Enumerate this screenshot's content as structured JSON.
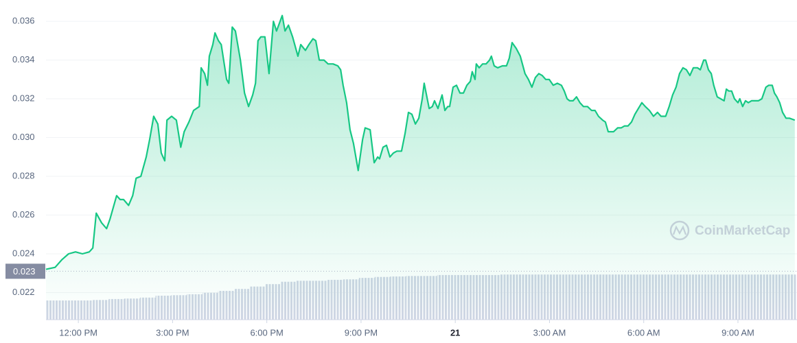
{
  "chart_data": {
    "type": "area",
    "color": "#16c784",
    "watermark": "CoinMarketCap",
    "xlim": [
      -1.03,
      22.88
    ],
    "xticks": [
      {
        "value": 0,
        "label": "12:00 PM"
      },
      {
        "value": 3,
        "label": "3:00 PM"
      },
      {
        "value": 6,
        "label": "6:00 PM"
      },
      {
        "value": 9,
        "label": "9:00 PM"
      },
      {
        "value": 12,
        "label": "21"
      },
      {
        "value": 15,
        "label": "3:00 AM"
      },
      {
        "value": 18,
        "label": "6:00 AM"
      },
      {
        "value": 21,
        "label": "9:00 AM"
      }
    ],
    "ylim": [
      0.0206,
      0.0371
    ],
    "yticks": [
      0.022,
      0.024,
      0.026,
      0.028,
      {
        "value": 0.03,
        "label": "0.030"
      },
      0.032,
      0.034,
      0.036
    ],
    "grid": true,
    "reference_line": {
      "value": 0.0231,
      "label": "0.023"
    },
    "x": [
      -1.03,
      -0.74,
      -0.52,
      -0.31,
      -0.09,
      0.13,
      0.35,
      0.46,
      0.57,
      0.74,
      0.9,
      1.01,
      1.22,
      1.33,
      1.44,
      1.6,
      1.73,
      1.84,
      1.99,
      2.16,
      2.27,
      2.4,
      2.53,
      2.64,
      2.75,
      2.82,
      2.97,
      3.12,
      3.26,
      3.37,
      3.52,
      3.67,
      3.85,
      3.91,
      4.02,
      4.11,
      4.17,
      4.28,
      4.35,
      4.46,
      4.55,
      4.72,
      4.79,
      4.9,
      5.0,
      5.16,
      5.29,
      5.42,
      5.55,
      5.64,
      5.72,
      5.81,
      5.94,
      6.07,
      6.21,
      6.31,
      6.4,
      6.49,
      6.58,
      6.69,
      6.82,
      6.99,
      7.08,
      7.23,
      7.34,
      7.47,
      7.56,
      7.67,
      7.82,
      7.95,
      8.11,
      8.26,
      8.35,
      8.43,
      8.54,
      8.65,
      8.76,
      8.91,
      9.05,
      9.13,
      9.29,
      9.42,
      9.53,
      9.59,
      9.7,
      9.81,
      9.92,
      10.03,
      10.14,
      10.29,
      10.4,
      10.51,
      10.62,
      10.73,
      10.84,
      10.95,
      11.01,
      11.17,
      11.27,
      11.34,
      11.45,
      11.58,
      11.67,
      11.76,
      11.82,
      11.93,
      12.04,
      12.15,
      12.26,
      12.37,
      12.48,
      12.54,
      12.63,
      12.67,
      12.76,
      12.87,
      12.98,
      13.09,
      13.15,
      13.24,
      13.35,
      13.5,
      13.63,
      13.72,
      13.81,
      13.94,
      14.07,
      14.22,
      14.33,
      14.44,
      14.55,
      14.66,
      14.77,
      14.88,
      14.99,
      15.12,
      15.25,
      15.38,
      15.47,
      15.56,
      15.64,
      15.75,
      15.86,
      15.97,
      16.08,
      16.21,
      16.34,
      16.45,
      16.56,
      16.69,
      16.78,
      16.87,
      17.04,
      17.17,
      17.28,
      17.39,
      17.5,
      17.61,
      17.72,
      17.83,
      17.94,
      18.05,
      18.18,
      18.31,
      18.44,
      18.55,
      18.7,
      18.81,
      18.92,
      19.03,
      19.14,
      19.25,
      19.36,
      19.47,
      19.58,
      19.71,
      19.8,
      19.91,
      19.97,
      20.06,
      20.15,
      20.23,
      20.34,
      20.45,
      20.56,
      20.63,
      20.71,
      20.8,
      20.89,
      21.0,
      21.06,
      21.15,
      21.24,
      21.33,
      21.43,
      21.54,
      21.65,
      21.76,
      21.89,
      21.98,
      22.09,
      22.16,
      22.24,
      22.33,
      22.42,
      22.53,
      22.64,
      22.81
    ],
    "values": [
      0.0232,
      0.0233,
      0.0237,
      0.024,
      0.0241,
      0.024,
      0.0241,
      0.0243,
      0.0261,
      0.0256,
      0.0253,
      0.0258,
      0.027,
      0.0268,
      0.0268,
      0.0265,
      0.027,
      0.0279,
      0.028,
      0.029,
      0.0299,
      0.0311,
      0.0307,
      0.0292,
      0.0288,
      0.0309,
      0.0311,
      0.0309,
      0.0295,
      0.0303,
      0.0308,
      0.0314,
      0.0316,
      0.0336,
      0.0333,
      0.0327,
      0.0342,
      0.0348,
      0.0354,
      0.035,
      0.0348,
      0.033,
      0.0328,
      0.0357,
      0.0355,
      0.034,
      0.0323,
      0.0316,
      0.0322,
      0.0328,
      0.035,
      0.0352,
      0.0352,
      0.0333,
      0.036,
      0.0355,
      0.0359,
      0.0363,
      0.0355,
      0.0358,
      0.0352,
      0.0342,
      0.0348,
      0.0345,
      0.0348,
      0.0351,
      0.035,
      0.034,
      0.034,
      0.0338,
      0.0338,
      0.0337,
      0.0335,
      0.0327,
      0.0318,
      0.0304,
      0.0297,
      0.0283,
      0.0299,
      0.0305,
      0.0304,
      0.0287,
      0.029,
      0.0289,
      0.0295,
      0.0296,
      0.029,
      0.0292,
      0.0293,
      0.0293,
      0.0302,
      0.0313,
      0.0312,
      0.0307,
      0.031,
      0.032,
      0.0328,
      0.0315,
      0.0316,
      0.0319,
      0.0315,
      0.0322,
      0.0314,
      0.0316,
      0.0316,
      0.0326,
      0.0327,
      0.0323,
      0.0323,
      0.0327,
      0.0329,
      0.0334,
      0.033,
      0.0338,
      0.0336,
      0.0338,
      0.0338,
      0.034,
      0.0342,
      0.0337,
      0.0336,
      0.0337,
      0.0337,
      0.0341,
      0.0349,
      0.0346,
      0.0342,
      0.0333,
      0.033,
      0.0326,
      0.0331,
      0.0333,
      0.0332,
      0.033,
      0.033,
      0.0327,
      0.0328,
      0.0327,
      0.0324,
      0.032,
      0.0319,
      0.0319,
      0.0321,
      0.0318,
      0.0316,
      0.0316,
      0.0314,
      0.0314,
      0.0311,
      0.0309,
      0.0308,
      0.0303,
      0.0303,
      0.0305,
      0.0305,
      0.0306,
      0.0306,
      0.0308,
      0.0312,
      0.0315,
      0.0318,
      0.0316,
      0.0314,
      0.0311,
      0.0313,
      0.0311,
      0.0311,
      0.0316,
      0.0322,
      0.0326,
      0.0333,
      0.0336,
      0.0335,
      0.0332,
      0.0336,
      0.0336,
      0.0335,
      0.034,
      0.034,
      0.0335,
      0.0333,
      0.0327,
      0.0321,
      0.032,
      0.0319,
      0.0325,
      0.0324,
      0.0324,
      0.032,
      0.0318,
      0.032,
      0.0316,
      0.0319,
      0.0318,
      0.0319,
      0.0319,
      0.0319,
      0.032,
      0.0326,
      0.0327,
      0.0327,
      0.0323,
      0.0321,
      0.0318,
      0.0313,
      0.031,
      0.031,
      0.0309
    ],
    "volume": {
      "color": "#cfd6e4",
      "values": [
        40,
        40,
        40,
        41,
        43,
        44,
        46,
        50,
        51,
        53,
        56,
        60,
        64,
        69,
        74,
        79,
        81,
        81,
        83,
        84,
        87,
        89,
        90,
        91,
        91,
        93,
        93,
        93,
        93,
        94,
        94,
        94,
        94,
        94,
        94,
        94,
        94,
        94,
        94,
        94,
        94,
        94,
        94,
        94,
        94,
        94,
        94,
        94
      ]
    }
  }
}
